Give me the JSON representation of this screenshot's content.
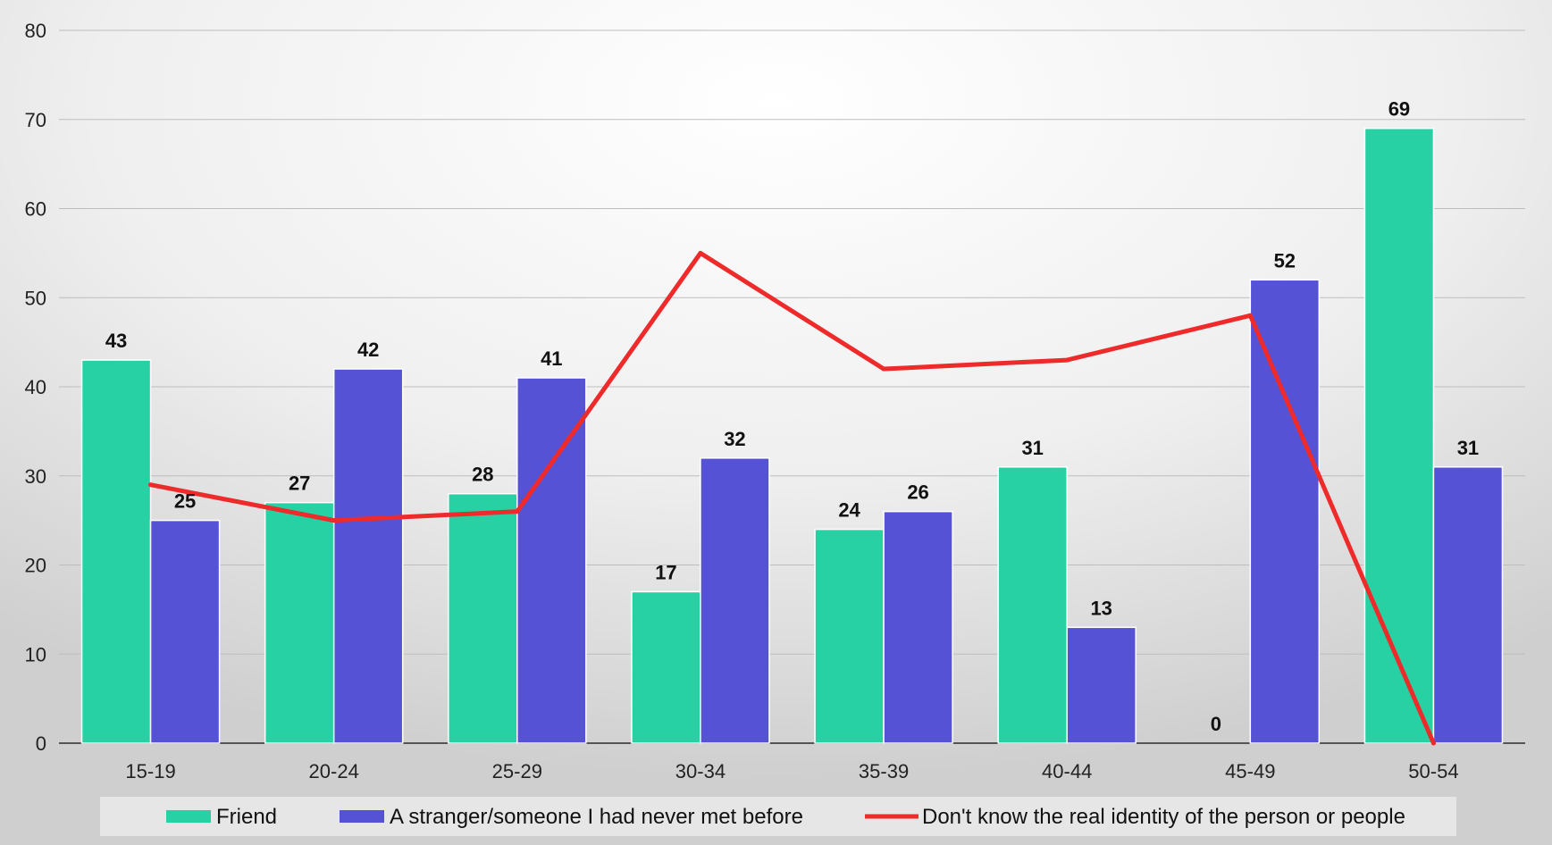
{
  "chart_data": {
    "type": "bar",
    "categories": [
      "15-19",
      "20-24",
      "25-29",
      "30-34",
      "35-39",
      "40-44",
      "45-49",
      "50-54"
    ],
    "series": [
      {
        "name": "Friend",
        "kind": "bar",
        "color": "#27d1a3",
        "values": [
          43,
          27,
          28,
          17,
          24,
          31,
          0,
          69
        ]
      },
      {
        "name": "A stranger/someone I had never met before",
        "kind": "bar",
        "color": "#5552d6",
        "values": [
          25,
          42,
          41,
          32,
          26,
          13,
          52,
          31
        ]
      },
      {
        "name": "Don't know the real identity of the person or people",
        "kind": "line",
        "color": "#ee2a2a",
        "values": [
          29,
          25,
          26,
          55,
          42,
          43,
          48,
          0
        ]
      }
    ],
    "yticks": [
      "0",
      "10",
      "20",
      "30",
      "40",
      "50",
      "60",
      "70",
      "80"
    ],
    "ylim": [
      0,
      80
    ],
    "grid": true,
    "legend_position": "bottom"
  }
}
